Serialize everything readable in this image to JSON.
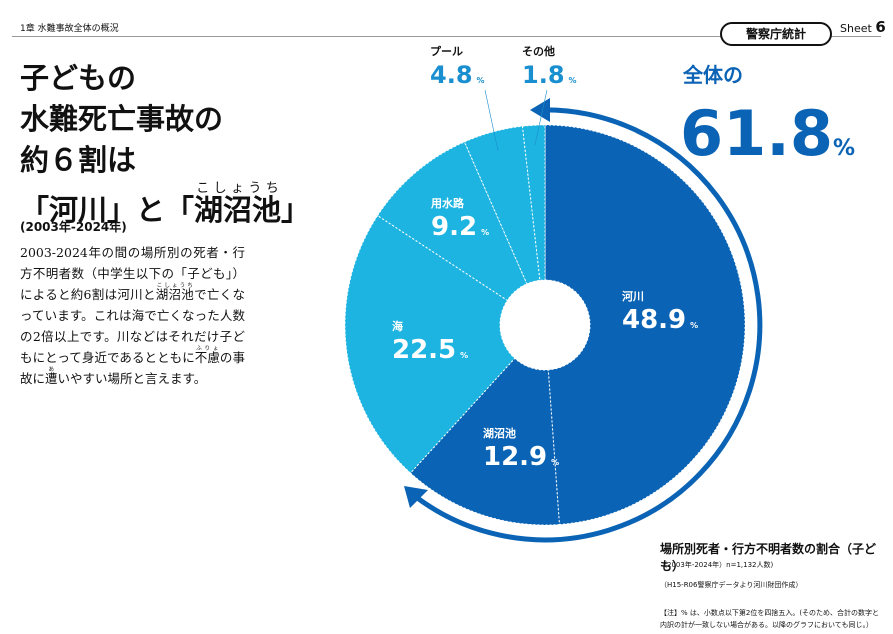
{
  "header": {
    "chapter": "1章 水難事故全体の概況",
    "sheet_word": "Sheet",
    "sheet_number": "6",
    "badge": "警察庁統計"
  },
  "title": {
    "lines": [
      "子どもの",
      "水難死亡事故の",
      "約６割は"
    ],
    "last_line": [
      "「河川」と「",
      {
        "base": "湖沼池",
        "ruby": "こしょうち"
      },
      "」"
    ],
    "period": "(2003年-2024年)"
  },
  "body": [
    "2003-2024年の間の場所別の死者・行方不明者数（中学生以下の「子ども」）によると約6割は河川と",
    {
      "base": "湖沼池",
      "ruby": "こしょうち"
    },
    "で亡くなっています。これは海で亡くなった人数の2倍以上です。川などはそれだけ子どもにとって身近であるとともに",
    {
      "base": "不慮",
      "ruby": "ふりょ"
    },
    "の事故に",
    {
      "base": "遭",
      "ruby": "あ"
    },
    "いやすい場所と言えます。"
  ],
  "chart_data": {
    "type": "donut",
    "categories": [
      "河川",
      "湖沼池",
      "海",
      "用水路",
      "プール",
      "その他"
    ],
    "values": [
      48.9,
      12.9,
      22.5,
      9.2,
      4.8,
      1.8
    ],
    "value_unit": "%",
    "colors": [
      "#0a63b4",
      "#0a63b4",
      "#1db4e1",
      "#1db4e1",
      "#1db4e1",
      "#1db4e1"
    ],
    "callout": {
      "prefix": "全体の",
      "value": 61.8
    },
    "caption": {
      "title": "場所別死者・行方不明者数の割合（子ども）",
      "period": "（2003年-2024年）n=1,132人数)",
      "source": "（H15-R06警察庁データより河川財団作成）",
      "note": [
        "【注】% は、小数点以下第2位を四捨五入。(そのため、合計の数字と",
        "内訳の計が一致しない場合がある。以降のグラフにおいても同じ。）"
      ]
    }
  }
}
